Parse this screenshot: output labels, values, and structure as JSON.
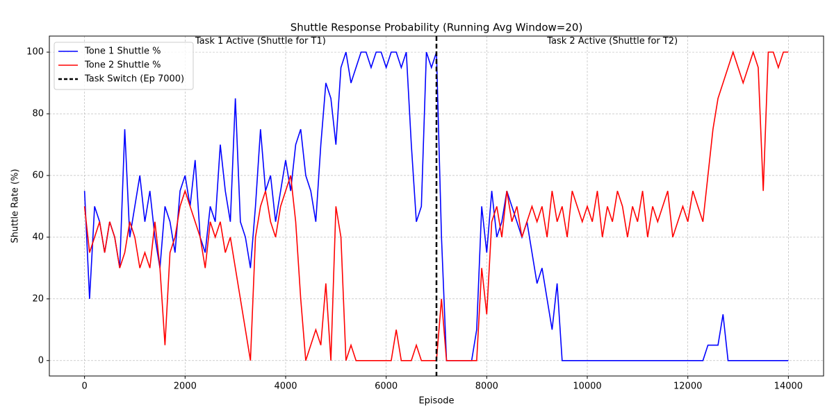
{
  "chart_data": {
    "type": "line",
    "title": "Shuttle Response Probability (Running Avg Window=20)",
    "xlabel": "Episode",
    "ylabel": "Shuttle Rate (%)",
    "x": [
      0,
      100,
      200,
      300,
      400,
      500,
      600,
      700,
      800,
      900,
      1000,
      1100,
      1200,
      1300,
      1400,
      1500,
      1600,
      1700,
      1800,
      1900,
      2000,
      2100,
      2200,
      2300,
      2400,
      2500,
      2600,
      2700,
      2800,
      2900,
      3000,
      3100,
      3200,
      3300,
      3400,
      3500,
      3600,
      3700,
      3800,
      3900,
      4000,
      4100,
      4200,
      4300,
      4400,
      4500,
      4600,
      4700,
      4800,
      4900,
      5000,
      5100,
      5200,
      5300,
      5400,
      5500,
      5600,
      5700,
      5800,
      5900,
      6000,
      6100,
      6200,
      6300,
      6400,
      6500,
      6600,
      6700,
      6800,
      6900,
      7000,
      7100,
      7200,
      7300,
      7400,
      7500,
      7600,
      7700,
      7800,
      7900,
      8000,
      8100,
      8200,
      8300,
      8400,
      8500,
      8600,
      8700,
      8800,
      8900,
      9000,
      9100,
      9200,
      9300,
      9400,
      9500,
      9600,
      9700,
      9800,
      9900,
      10000,
      10100,
      10200,
      10300,
      10400,
      10500,
      10600,
      10700,
      10800,
      10900,
      11000,
      11100,
      11200,
      11300,
      11400,
      11500,
      11600,
      11700,
      11800,
      11900,
      12000,
      12100,
      12200,
      12300,
      12400,
      12500,
      12600,
      12700,
      12800,
      12900,
      13000,
      13100,
      13200,
      13300,
      13400,
      13500,
      13600,
      13700,
      13800,
      13900,
      14000
    ],
    "series": [
      {
        "name": "Tone 1 Shuttle %",
        "color": "#0000ff",
        "values": [
          55,
          20,
          50,
          45,
          35,
          45,
          40,
          30,
          75,
          40,
          50,
          60,
          45,
          55,
          40,
          30,
          50,
          45,
          35,
          55,
          60,
          50,
          65,
          40,
          35,
          50,
          45,
          70,
          55,
          45,
          85,
          45,
          40,
          30,
          50,
          75,
          55,
          60,
          45,
          55,
          65,
          55,
          70,
          75,
          60,
          55,
          45,
          70,
          90,
          85,
          70,
          95,
          100,
          90,
          95,
          100,
          100,
          95,
          100,
          100,
          95,
          100,
          100,
          95,
          100,
          70,
          45,
          50,
          100,
          95,
          100,
          40,
          0,
          0,
          0,
          0,
          0,
          0,
          10,
          50,
          35,
          55,
          40,
          45,
          55,
          50,
          45,
          40,
          45,
          35,
          25,
          30,
          20,
          10,
          25,
          0,
          0,
          0,
          0,
          0,
          0,
          0,
          0,
          0,
          0,
          0,
          0,
          0,
          0,
          0,
          0,
          0,
          0,
          0,
          0,
          0,
          0,
          0,
          0,
          0,
          0,
          0,
          0,
          0,
          5,
          5,
          5,
          15,
          0,
          0,
          0,
          0,
          0,
          0,
          0,
          0,
          0,
          0,
          0,
          0,
          0
        ]
      },
      {
        "name": "Tone 2 Shuttle %",
        "color": "#ff0000",
        "values": [
          50,
          35,
          40,
          45,
          35,
          45,
          40,
          30,
          35,
          45,
          40,
          30,
          35,
          30,
          45,
          30,
          5,
          35,
          40,
          50,
          55,
          50,
          45,
          40,
          30,
          45,
          40,
          45,
          35,
          40,
          30,
          20,
          10,
          0,
          40,
          50,
          55,
          45,
          40,
          50,
          55,
          60,
          45,
          20,
          0,
          5,
          10,
          5,
          25,
          0,
          50,
          40,
          0,
          5,
          0,
          0,
          0,
          0,
          0,
          0,
          0,
          0,
          10,
          0,
          0,
          0,
          5,
          0,
          0,
          0,
          0,
          20,
          0,
          0,
          0,
          0,
          0,
          0,
          0,
          30,
          15,
          45,
          50,
          40,
          55,
          45,
          50,
          40,
          45,
          50,
          45,
          50,
          40,
          55,
          45,
          50,
          40,
          55,
          50,
          45,
          50,
          45,
          55,
          40,
          50,
          45,
          55,
          50,
          40,
          50,
          45,
          55,
          40,
          50,
          45,
          50,
          55,
          40,
          45,
          50,
          45,
          55,
          50,
          45,
          60,
          75,
          85,
          90,
          95,
          100,
          95,
          90,
          95,
          100,
          95,
          55,
          100,
          100,
          95,
          100,
          100
        ]
      }
    ],
    "vline": {
      "x": 7000,
      "name": "Task Switch (Ep 7000)",
      "color": "#000000"
    },
    "annotations": [
      {
        "text": "Task 1 Active (Shuttle for T1)",
        "x": 3500,
        "y": 103.5
      },
      {
        "text": "Task 2 Active (Shuttle for T2)",
        "x": 10500,
        "y": 103.5
      }
    ],
    "xlim": [
      -700,
      14700
    ],
    "ylim": [
      -5,
      105.2
    ],
    "xticks": [
      0,
      2000,
      4000,
      6000,
      8000,
      10000,
      12000,
      14000
    ],
    "yticks": [
      0,
      20,
      40,
      60,
      80,
      100
    ],
    "grid": true,
    "legend": "upper left"
  }
}
